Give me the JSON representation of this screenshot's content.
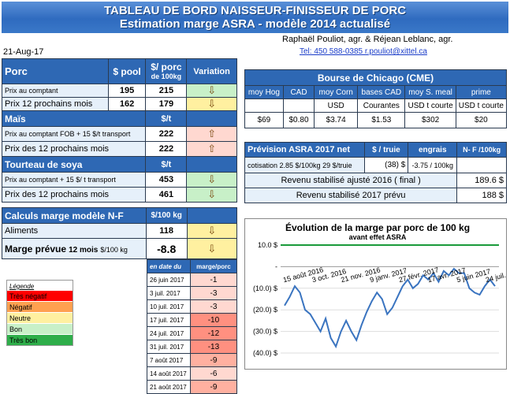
{
  "header": {
    "title_line1": "TABLEAU DE BORD NAISSEUR-FINISSEUR DE PORC",
    "title_line2": "Estimation marge ASRA - modèle 2014 actualisé",
    "date": "21-Aug-17",
    "authors": "Raphaël Pouliot, agr.    &    Réjean Leblanc, agr.",
    "contact": "Tel:    450 588-0385   r.pouliot@xittel.ca"
  },
  "porc": {
    "title": "Porc",
    "col_pool": "$ pool",
    "col_porc": "$/ porc",
    "col_porc_sub": "de 100kg",
    "col_var": "Variation",
    "rows": [
      {
        "label": "Prix au comptant",
        "pool": "195",
        "porc": "215",
        "arrow": "⇩"
      },
      {
        "label": "Prix 12 prochains mois",
        "pool": "162",
        "porc": "179",
        "arrow": "⇩"
      }
    ]
  },
  "mais": {
    "title": "Maïs",
    "unit": "$/t",
    "rows": [
      {
        "label": "Prix au comptant FOB + 15 $/t transport",
        "value": "222",
        "arrow": "⇧"
      },
      {
        "label": "Prix des 12 prochains mois",
        "value": "222",
        "arrow": "⇧"
      }
    ]
  },
  "soya": {
    "title": "Tourteau de soya",
    "unit": "$/t",
    "rows": [
      {
        "label": "Prix au comptant + 15 $/ t  transport",
        "value": "453",
        "arrow": "⇩"
      },
      {
        "label": "Prix des 12 prochains mois",
        "value": "461",
        "arrow": "⇩"
      }
    ]
  },
  "calcul": {
    "title": "Calculs marge  modèle N-F",
    "unit": "$/100 kg",
    "aliments_label": "Aliments",
    "aliments_value": "118",
    "arrow1": "⇩",
    "marge_label": "Marge prévue",
    "marge_sub": "12 mois",
    "marge_unit": "$/100 kg",
    "marge_value": "-8.8",
    "arrow2": "⇩"
  },
  "history": {
    "col1": "en date du",
    "col2": "marge/porc",
    "rows": [
      {
        "date": "26 juin 2017",
        "value": "-1"
      },
      {
        "date": "3 juil. 2017",
        "value": "-3"
      },
      {
        "date": "10 juil. 2017",
        "value": "-3"
      },
      {
        "date": "17 juil. 2017",
        "value": "-10"
      },
      {
        "date": "24 juil. 2017",
        "value": "-12"
      },
      {
        "date": "31 juil. 2017",
        "value": "-13"
      },
      {
        "date": "7 août 2017",
        "value": "-9"
      },
      {
        "date": "14 août 2017",
        "value": "-6"
      },
      {
        "date": "21 août 2017",
        "value": "-9"
      }
    ]
  },
  "legend": {
    "title": "Légende",
    "items": [
      {
        "label": "Très négatif",
        "color": "#ff0000"
      },
      {
        "label": "Négatif",
        "color": "#ffa050"
      },
      {
        "label": "Neutre",
        "color": "#fff0a0"
      },
      {
        "label": "Bon",
        "color": "#c8f0c8"
      },
      {
        "label": "Très bon",
        "color": "#2eae4a"
      }
    ]
  },
  "cme": {
    "title": "Bourse de Chicago (CME)",
    "cols": [
      "moy Hog",
      "CAD",
      "moy Corn",
      "bases CAD",
      "moy S. meal",
      "prime"
    ],
    "units": [
      "",
      "",
      "USD",
      "Courantes",
      "USD t courte",
      "USD t courte"
    ],
    "values": [
      "$69",
      "$0.80",
      "$3.74",
      "$1.53",
      "$302",
      "$20"
    ]
  },
  "asra": {
    "title": "Prévision ASRA 2017 net",
    "col1": "$ / truie",
    "col2": "engrais",
    "col3": "N- F /100kg",
    "cotisation_label": "cotisation 2.85 $/100kg  29 $/truie",
    "cotisation_truie": "(38) $",
    "cotisation_engrais": "-3.75 / 100kg",
    "revenu_label": "Revenu stabilisé ajusté 2016 ( final )",
    "revenu_value": "189.6 $",
    "prevu_label": "Revenu stabilisé 2017 prévu",
    "prevu_value": "188 $"
  },
  "chart_data": {
    "type": "line",
    "title": "Évolution de la marge par porc de 100 kg",
    "subtitle": "avant effet ASRA",
    "yticks": [
      "10.0 $",
      "-",
      "(10.0) $",
      "(20.0) $",
      "(30.0) $",
      "(40.0) $"
    ],
    "ylim": [
      -40,
      10
    ],
    "xticks": [
      "15 août 2016",
      "3 oct. 2016",
      "21 nov. 2016",
      "9 janv. 2017",
      "27 févr. 2017",
      "17 avr. 2017",
      "5 juin 2017",
      "24 juil. 2017"
    ],
    "series": [
      {
        "color": "#3a74c0",
        "values": [
          -18,
          -14,
          -9,
          -12,
          -20,
          -22,
          -26,
          -30,
          -24,
          -33,
          -37,
          -30,
          -25,
          -30,
          -34,
          -27,
          -21,
          -16,
          -12,
          -15,
          -22,
          -19,
          -14,
          -9,
          -6,
          -10,
          -8,
          -4,
          -6,
          -3,
          -7,
          -2,
          -4,
          -1,
          -3,
          -3,
          -10,
          -12,
          -13,
          -9,
          -6,
          -9
        ]
      },
      {
        "color": "#1a9a3a",
        "values": [
          10,
          10
        ]
      }
    ],
    "grid": true
  }
}
